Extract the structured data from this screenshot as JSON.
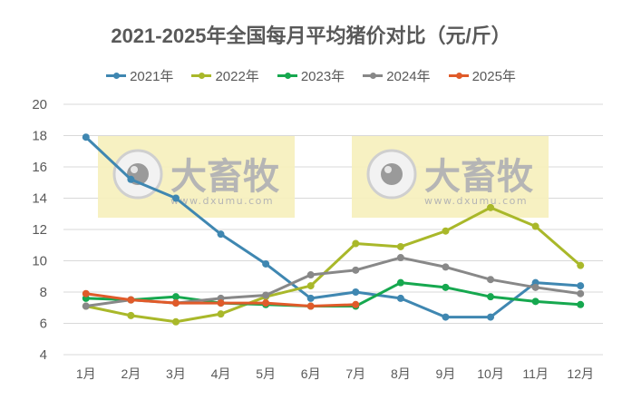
{
  "title": "2021-2025年全国每月平均猪价对比（元/斤）",
  "legend": [
    {
      "label": "2021年",
      "color": "#3f87b1"
    },
    {
      "label": "2022年",
      "color": "#a9b82a"
    },
    {
      "label": "2023年",
      "color": "#16a84f"
    },
    {
      "label": "2024年",
      "color": "#888888"
    },
    {
      "label": "2025年",
      "color": "#e05b2a"
    }
  ],
  "watermark": {
    "brand": "大畜牧",
    "url": "www.dxumu.com"
  },
  "chart_data": {
    "type": "line",
    "title": "2021-2025年全国每月平均猪价对比（元/斤）",
    "xlabel": "",
    "ylabel": "",
    "categories": [
      "1月",
      "2月",
      "3月",
      "4月",
      "5月",
      "6月",
      "7月",
      "8月",
      "9月",
      "10月",
      "11月",
      "12月"
    ],
    "ylim": [
      4,
      20
    ],
    "yticks": [
      4,
      6,
      8,
      10,
      12,
      14,
      16,
      18,
      20
    ],
    "grid": true,
    "legend_position": "top",
    "series": [
      {
        "name": "2021年",
        "color": "#3f87b1",
        "values": [
          17.9,
          15.2,
          14.0,
          11.7,
          9.8,
          7.6,
          8.0,
          7.6,
          6.4,
          6.4,
          8.6,
          8.4
        ]
      },
      {
        "name": "2022年",
        "color": "#a9b82a",
        "values": [
          7.1,
          6.5,
          6.1,
          6.6,
          7.7,
          8.4,
          11.1,
          10.9,
          11.9,
          13.4,
          12.2,
          9.7
        ]
      },
      {
        "name": "2023年",
        "color": "#16a84f",
        "values": [
          7.6,
          7.5,
          7.7,
          7.3,
          7.2,
          7.1,
          7.1,
          8.6,
          8.3,
          7.7,
          7.4,
          7.2
        ]
      },
      {
        "name": "2024年",
        "color": "#888888",
        "values": [
          7.1,
          7.5,
          7.3,
          7.6,
          7.8,
          9.1,
          9.4,
          10.2,
          9.6,
          8.8,
          8.3,
          7.9
        ]
      },
      {
        "name": "2025年",
        "color": "#e05b2a",
        "values": [
          7.9,
          7.5,
          7.3,
          7.3,
          7.3,
          7.1,
          7.2
        ]
      }
    ]
  }
}
